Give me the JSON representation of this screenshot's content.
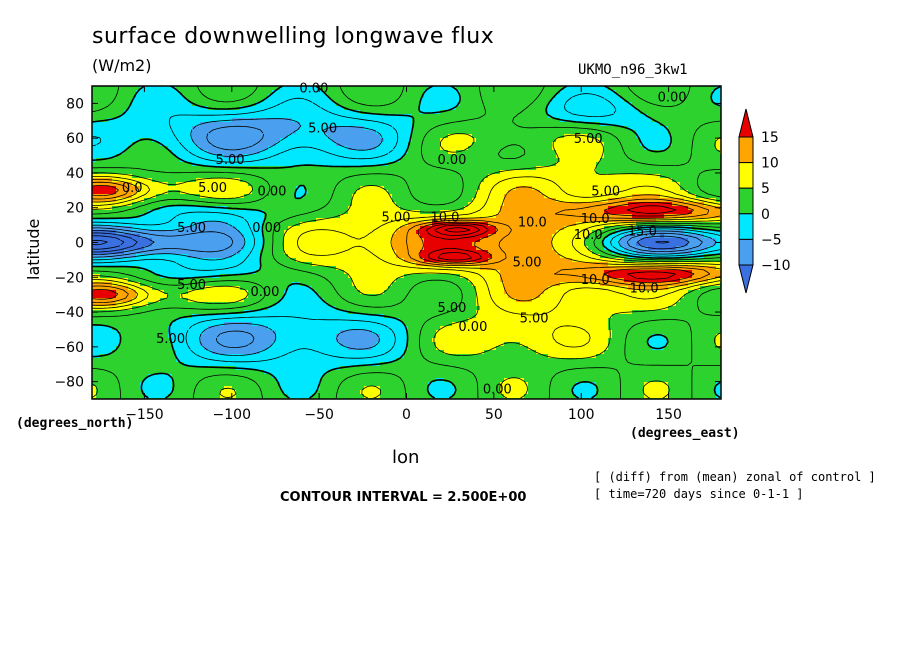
{
  "title": "surface downwelling longwave flux",
  "units_label": "(W/m2)",
  "run_label": "UKMO_n96_3kw1",
  "xlabel": "lon",
  "ylabel": "latitude",
  "x_units": "(degrees_east)",
  "y_units": "(degrees_north)",
  "contour_interval_text": "CONTOUR INTERVAL = 2.500E+00",
  "notes": [
    "[ (diff) from (mean) zonal of control ]",
    "[ time=720 days since 0-1-1 ]"
  ],
  "chart_data": {
    "type": "heatmap",
    "title": "surface downwelling longwave flux",
    "xlabel": "lon",
    "ylabel": "latitude",
    "xlim": [
      -180,
      180
    ],
    "ylim": [
      -90,
      90
    ],
    "x_ticks": [
      -150,
      -100,
      -50,
      0,
      50,
      100,
      150
    ],
    "y_ticks": [
      -80,
      -60,
      -40,
      -20,
      0,
      20,
      40,
      60,
      80
    ],
    "levels": [
      -10,
      -5,
      0,
      5,
      10,
      15
    ],
    "colorbar_labels": [
      "15",
      "10",
      "5",
      "0",
      "-5",
      "-10"
    ],
    "colors": {
      "below_-10": "#3a70e0",
      "-10_to_-5": "#4aa0ee",
      "-5_to_0": "#00e8ff",
      "0_to_5": "#2ed22e",
      "5_to_10": "#ffff00",
      "10_to_15": "#ffa500",
      "above_15": "#e80000"
    },
    "contour_labels": [
      {
        "text": "0.00",
        "lon": -53,
        "lat": 89
      },
      {
        "text": "0.00",
        "lon": 152,
        "lat": 84
      },
      {
        "text": "5.00",
        "lon": -48,
        "lat": 66
      },
      {
        "text": "5.00",
        "lon": 104,
        "lat": 60
      },
      {
        "text": "0.00",
        "lon": 26,
        "lat": 48
      },
      {
        "text": "5.00",
        "lon": -101,
        "lat": 48
      },
      {
        "text": "0.0",
        "lon": -157,
        "lat": 32
      },
      {
        "text": "5.00",
        "lon": -111,
        "lat": 32
      },
      {
        "text": "0.00",
        "lon": -77,
        "lat": 30
      },
      {
        "text": "5.00",
        "lon": 114,
        "lat": 30
      },
      {
        "text": "5.00",
        "lon": -6,
        "lat": 15
      },
      {
        "text": "10.0",
        "lon": 22,
        "lat": 15
      },
      {
        "text": "10.0",
        "lon": 72,
        "lat": 12
      },
      {
        "text": "10.0",
        "lon": 108,
        "lat": 14
      },
      {
        "text": "5.00",
        "lon": -123,
        "lat": 9
      },
      {
        "text": "0.00",
        "lon": -80,
        "lat": 9
      },
      {
        "text": "10.0",
        "lon": 104,
        "lat": 5
      },
      {
        "text": "15.0",
        "lon": 135,
        "lat": 7
      },
      {
        "text": "5.00",
        "lon": 69,
        "lat": -11
      },
      {
        "text": "10.0",
        "lon": 108,
        "lat": -21
      },
      {
        "text": "10.0",
        "lon": 136,
        "lat": -26
      },
      {
        "text": "5.00",
        "lon": -123,
        "lat": -24
      },
      {
        "text": "0.00",
        "lon": -81,
        "lat": -28
      },
      {
        "text": "5.00",
        "lon": 26,
        "lat": -37
      },
      {
        "text": "0.00",
        "lon": 38,
        "lat": -48
      },
      {
        "text": "5.00",
        "lon": 73,
        "lat": -43
      },
      {
        "text": "5.00",
        "lon": -135,
        "lat": -55
      },
      {
        "text": "0.00",
        "lon": 52,
        "lat": -84
      }
    ]
  }
}
